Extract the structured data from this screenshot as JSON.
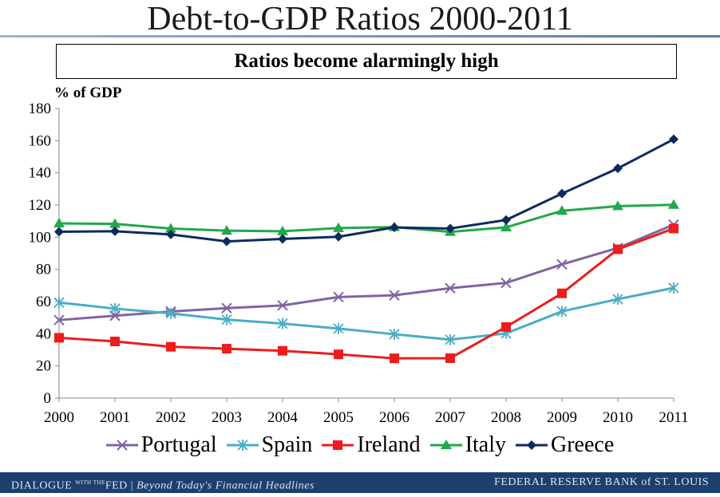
{
  "header": {
    "title": "Debt-to-GDP Ratios 2000-2011"
  },
  "chart_data": {
    "type": "line",
    "title": "Debt-to-GDP Ratios 2000-2011",
    "subtitle": "Ratios become alarmingly high",
    "ylabel": "% of GDP",
    "xlabel": "",
    "categories": [
      "2000",
      "2001",
      "2002",
      "2003",
      "2004",
      "2005",
      "2006",
      "2007",
      "2008",
      "2009",
      "2010",
      "2011"
    ],
    "ylim": [
      0,
      180
    ],
    "yticks": [
      "0",
      "20",
      "40",
      "60",
      "80",
      "100",
      "120",
      "140",
      "160",
      "180"
    ],
    "grid": false,
    "legend_position": "bottom",
    "series": [
      {
        "name": "Portugal",
        "color": "#8064a2",
        "marker": "x",
        "values": [
          48.5,
          51.2,
          53.8,
          55.9,
          57.6,
          62.8,
          63.9,
          68.3,
          71.6,
          83.1,
          93.3,
          107.8
        ]
      },
      {
        "name": "Spain",
        "color": "#4bacc6",
        "marker": "asterisk",
        "values": [
          59.4,
          55.6,
          52.6,
          48.8,
          46.3,
          43.2,
          39.7,
          36.3,
          40.2,
          53.9,
          61.5,
          68.5
        ]
      },
      {
        "name": "Ireland",
        "color": "#ee1c1c",
        "marker": "square",
        "values": [
          37.5,
          35.2,
          31.9,
          30.7,
          29.4,
          27.2,
          24.7,
          24.8,
          44.2,
          65.1,
          92.5,
          105.4
        ]
      },
      {
        "name": "Italy",
        "color": "#21a84a",
        "marker": "triangle",
        "values": [
          108.6,
          108.3,
          105.4,
          104.1,
          103.7,
          105.7,
          106.3,
          103.3,
          106.1,
          116.4,
          119.3,
          120.1
        ]
      },
      {
        "name": "Greece",
        "color": "#0d2a5e",
        "marker": "diamond",
        "values": [
          103.4,
          103.7,
          101.7,
          97.4,
          98.9,
          100.3,
          106.1,
          105.4,
          110.7,
          127.1,
          142.8,
          160.9
        ]
      }
    ]
  },
  "footer": {
    "brand_dialogue": "DIALOGUE",
    "brand_with": "WITH THE",
    "brand_fed": "FED",
    "tagline": "Beyond Today's Financial Headlines",
    "org": "FEDERAL RESERVE BANK of ST. LOUIS"
  }
}
